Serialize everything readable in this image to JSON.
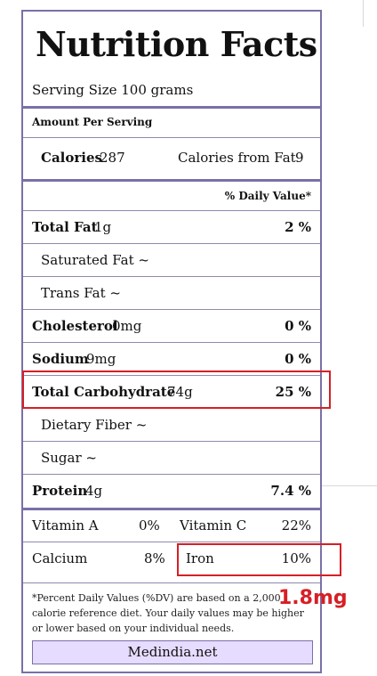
{
  "title": "Nutrition Facts",
  "serving": "Serving Size 100 grams",
  "amount_per_serving": "Amount Per Serving",
  "calories": {
    "label": "Calories",
    "value": "287",
    "fat_label": "Calories from Fat",
    "fat_value": "9"
  },
  "dv_header": "% Daily Value*",
  "nutrients": {
    "total_fat": {
      "label": "Total Fat",
      "amount": "1g",
      "dv": "2 %"
    },
    "saturated_fat": {
      "label": "Saturated Fat ~"
    },
    "trans_fat": {
      "label": "Trans Fat ~"
    },
    "cholesterol": {
      "label": "Cholesterol",
      "amount": "0mg",
      "dv": "0 %"
    },
    "sodium": {
      "label": "Sodium",
      "amount": "9mg",
      "dv": "0 %"
    },
    "total_carb": {
      "label": "Total Carbohydrate",
      "amount": "74g",
      "dv": "25 %"
    },
    "dietary_fiber": {
      "label": "Dietary Fiber ~"
    },
    "sugar": {
      "label": "Sugar ~"
    },
    "protein": {
      "label": "Protein",
      "amount": "4g",
      "dv": "7.4 %"
    }
  },
  "vitamins": {
    "vitamin_a": {
      "label": "Vitamin A",
      "value": "0%"
    },
    "vitamin_c": {
      "label": "Vitamin C",
      "value": "22%"
    },
    "calcium": {
      "label": "Calcium",
      "value": "8%"
    },
    "iron": {
      "label": "Iron",
      "value": "10%"
    }
  },
  "footnote": "*Percent Daily Values (%DV) are based on a 2,000 calorie reference diet. Your daily values may be higher or lower based on your individual needs.",
  "source": "Medindia.net",
  "annotation": "1.8mg",
  "colors": {
    "border": "#7a70a8",
    "highlight": "#d61f26",
    "source_bg": "#e5dcff"
  }
}
